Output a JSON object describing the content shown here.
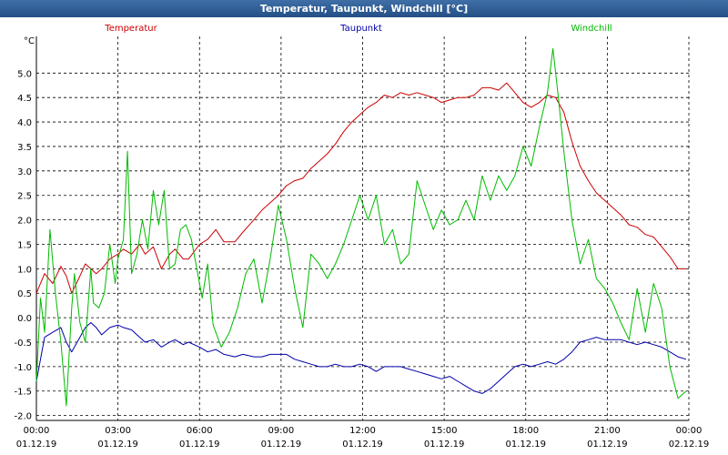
{
  "window": {
    "title": "Temperatur, Taupunkt, Windchill [°C]"
  },
  "chart_data": {
    "type": "line",
    "title": "Temperatur, Taupunkt, Windchill [°C]",
    "ylabel": "°C",
    "xlabel": "",
    "ylim": [
      -2.1,
      5.75
    ],
    "xlim": [
      0,
      24
    ],
    "grid": true,
    "legend": "top",
    "y_ticks": [
      -2.0,
      -1.5,
      -1.0,
      -0.5,
      0.0,
      0.5,
      1.0,
      1.5,
      2.0,
      2.5,
      3.0,
      3.5,
      4.0,
      4.5,
      5.0
    ],
    "x_ticks": [
      {
        "x": 0,
        "time": "00:00",
        "date": "01.12.19"
      },
      {
        "x": 3,
        "time": "03:00",
        "date": "01.12.19"
      },
      {
        "x": 6,
        "time": "06:00",
        "date": "01.12.19"
      },
      {
        "x": 9,
        "time": "09:00",
        "date": "01.12.19"
      },
      {
        "x": 12,
        "time": "12:00",
        "date": "01.12.19"
      },
      {
        "x": 15,
        "time": "15:00",
        "date": "01.12.19"
      },
      {
        "x": 18,
        "time": "18:00",
        "date": "01.12.19"
      },
      {
        "x": 21,
        "time": "21:00",
        "date": "01.12.19"
      },
      {
        "x": 24,
        "time": "00:00",
        "date": "02.12.19"
      }
    ],
    "series": [
      {
        "name": "Temperatur",
        "color": "#cc0000",
        "x": [
          0,
          0.3,
          0.6,
          0.9,
          1.1,
          1.3,
          1.6,
          1.8,
          2.0,
          2.2,
          2.4,
          2.7,
          3.0,
          3.2,
          3.5,
          3.8,
          4.0,
          4.3,
          4.6,
          4.9,
          5.1,
          5.4,
          5.6,
          6.0,
          6.3,
          6.6,
          6.9,
          7.3,
          7.6,
          8.0,
          8.3,
          8.6,
          8.9,
          9.2,
          9.5,
          9.8,
          10.1,
          10.4,
          10.7,
          11.0,
          11.3,
          11.6,
          11.9,
          12.2,
          12.5,
          12.8,
          13.1,
          13.4,
          13.7,
          14.0,
          14.3,
          14.6,
          14.9,
          15.2,
          15.5,
          15.8,
          16.1,
          16.4,
          16.7,
          17.0,
          17.3,
          17.6,
          17.9,
          18.2,
          18.5,
          18.8,
          19.1,
          19.4,
          19.7,
          20.0,
          20.3,
          20.6,
          20.9,
          21.2,
          21.5,
          21.8,
          22.1,
          22.4,
          22.7,
          23.0,
          23.3,
          23.6,
          23.9
        ],
        "values": [
          0.5,
          0.9,
          0.7,
          1.05,
          0.85,
          0.5,
          0.85,
          1.1,
          1.0,
          0.9,
          1.0,
          1.2,
          1.3,
          1.4,
          1.3,
          1.5,
          1.3,
          1.45,
          1.0,
          1.3,
          1.4,
          1.2,
          1.2,
          1.5,
          1.6,
          1.8,
          1.55,
          1.55,
          1.75,
          2.0,
          2.2,
          2.35,
          2.5,
          2.7,
          2.8,
          2.85,
          3.05,
          3.2,
          3.35,
          3.55,
          3.8,
          4.0,
          4.15,
          4.3,
          4.4,
          4.55,
          4.5,
          4.6,
          4.55,
          4.6,
          4.55,
          4.5,
          4.4,
          4.45,
          4.5,
          4.5,
          4.55,
          4.7,
          4.7,
          4.65,
          4.8,
          4.6,
          4.4,
          4.3,
          4.4,
          4.55,
          4.5,
          4.2,
          3.6,
          3.1,
          2.8,
          2.55,
          2.4,
          2.25,
          2.1,
          1.9,
          1.85,
          1.7,
          1.65,
          1.45,
          1.25,
          1.0,
          1.0
        ]
      },
      {
        "name": "Taupunkt",
        "color": "#0000aa",
        "x": [
          0,
          0.3,
          0.6,
          0.9,
          1.1,
          1.3,
          1.6,
          1.8,
          2.0,
          2.2,
          2.4,
          2.7,
          3.0,
          3.2,
          3.5,
          3.8,
          4.0,
          4.3,
          4.6,
          4.9,
          5.1,
          5.4,
          5.6,
          6.0,
          6.3,
          6.6,
          6.9,
          7.3,
          7.6,
          8.0,
          8.3,
          8.6,
          8.9,
          9.2,
          9.5,
          9.8,
          10.1,
          10.4,
          10.7,
          11.0,
          11.3,
          11.6,
          11.9,
          12.2,
          12.5,
          12.8,
          13.1,
          13.4,
          13.7,
          14.0,
          14.3,
          14.6,
          14.9,
          15.2,
          15.5,
          15.8,
          16.1,
          16.4,
          16.7,
          17.0,
          17.3,
          17.6,
          17.9,
          18.2,
          18.5,
          18.8,
          19.1,
          19.4,
          19.7,
          20.0,
          20.3,
          20.6,
          20.9,
          21.2,
          21.5,
          21.8,
          22.1,
          22.4,
          22.7,
          23.0,
          23.3,
          23.6,
          23.9
        ],
        "values": [
          -1.3,
          -0.4,
          -0.3,
          -0.2,
          -0.5,
          -0.7,
          -0.4,
          -0.2,
          -0.1,
          -0.2,
          -0.35,
          -0.2,
          -0.15,
          -0.2,
          -0.25,
          -0.4,
          -0.5,
          -0.45,
          -0.6,
          -0.5,
          -0.45,
          -0.55,
          -0.5,
          -0.6,
          -0.7,
          -0.65,
          -0.75,
          -0.8,
          -0.75,
          -0.8,
          -0.8,
          -0.75,
          -0.75,
          -0.75,
          -0.85,
          -0.9,
          -0.95,
          -1.0,
          -1.0,
          -0.95,
          -1.0,
          -1.0,
          -0.95,
          -1.0,
          -1.1,
          -1.0,
          -1.0,
          -1.0,
          -1.05,
          -1.1,
          -1.15,
          -1.2,
          -1.25,
          -1.2,
          -1.3,
          -1.4,
          -1.5,
          -1.55,
          -1.45,
          -1.3,
          -1.15,
          -1.0,
          -0.95,
          -1.0,
          -0.95,
          -0.9,
          -0.95,
          -0.85,
          -0.7,
          -0.5,
          -0.45,
          -0.4,
          -0.45,
          -0.45,
          -0.45,
          -0.5,
          -0.55,
          -0.5,
          -0.55,
          -0.6,
          -0.7,
          -0.8,
          -0.85
        ]
      },
      {
        "name": "Windchill",
        "color": "#00bb00",
        "x": [
          0,
          0.15,
          0.3,
          0.5,
          0.7,
          0.9,
          1.1,
          1.3,
          1.4,
          1.6,
          1.8,
          2.0,
          2.1,
          2.3,
          2.5,
          2.7,
          2.9,
          3.0,
          3.2,
          3.35,
          3.5,
          3.7,
          3.9,
          4.1,
          4.3,
          4.5,
          4.7,
          4.9,
          5.1,
          5.3,
          5.5,
          5.7,
          5.9,
          6.1,
          6.3,
          6.5,
          6.8,
          7.1,
          7.4,
          7.7,
          8.0,
          8.3,
          8.6,
          8.9,
          9.2,
          9.5,
          9.8,
          10.1,
          10.4,
          10.7,
          11.0,
          11.3,
          11.6,
          11.9,
          12.2,
          12.5,
          12.8,
          13.1,
          13.4,
          13.7,
          14.0,
          14.3,
          14.6,
          14.9,
          15.2,
          15.5,
          15.8,
          16.1,
          16.4,
          16.7,
          17.0,
          17.3,
          17.6,
          17.9,
          18.2,
          18.5,
          18.8,
          19.0,
          19.2,
          19.4,
          19.7,
          20.0,
          20.3,
          20.6,
          20.9,
          21.2,
          21.5,
          21.8,
          22.1,
          22.4,
          22.7,
          23.0,
          23.3,
          23.6,
          23.9
        ],
        "values": [
          -1.3,
          0.4,
          -0.3,
          1.8,
          0.5,
          -0.5,
          -1.8,
          0.2,
          0.9,
          -0.1,
          -0.5,
          1.0,
          0.3,
          0.2,
          0.5,
          1.5,
          0.7,
          1.2,
          1.6,
          3.4,
          0.9,
          1.3,
          2.0,
          1.4,
          2.6,
          1.9,
          2.6,
          1.0,
          1.1,
          1.8,
          1.9,
          1.6,
          1.0,
          0.4,
          1.1,
          -0.15,
          -0.6,
          -0.3,
          0.2,
          0.9,
          1.2,
          0.3,
          1.2,
          2.3,
          1.6,
          0.6,
          -0.2,
          1.3,
          1.1,
          0.8,
          1.1,
          1.5,
          2.0,
          2.5,
          2.0,
          2.5,
          1.5,
          1.8,
          1.1,
          1.3,
          2.8,
          2.3,
          1.8,
          2.2,
          1.9,
          2.0,
          2.4,
          2.0,
          2.9,
          2.4,
          2.9,
          2.6,
          2.9,
          3.5,
          3.1,
          3.9,
          4.6,
          5.5,
          4.5,
          3.4,
          2.0,
          1.1,
          1.6,
          0.8,
          0.6,
          0.3,
          -0.1,
          -0.45,
          0.6,
          -0.3,
          0.7,
          0.2,
          -1.0,
          -1.65,
          -1.5
        ]
      }
    ]
  }
}
